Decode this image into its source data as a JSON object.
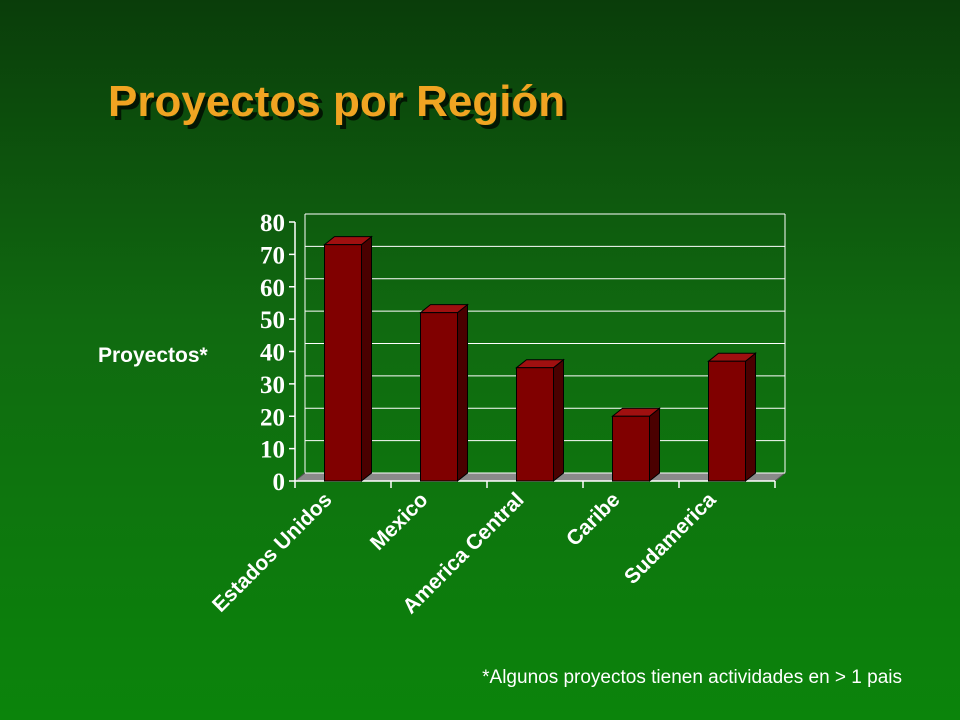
{
  "chart_data": {
    "type": "bar3d",
    "title": "Proyectos por Región",
    "y_label": "Proyectos*",
    "categories": [
      "Estados Unidos",
      "Mexico",
      "America Central",
      "Caribe",
      "Sudamerica"
    ],
    "values": [
      73,
      52,
      35,
      20,
      37
    ],
    "color": "#800000",
    "ylim": [
      0,
      80
    ],
    "yticks": [
      0,
      10,
      20,
      30,
      40,
      50,
      60,
      70,
      80
    ],
    "grid": true,
    "note": "*Algunos proyectos tienen actividades en > 1 pais"
  }
}
